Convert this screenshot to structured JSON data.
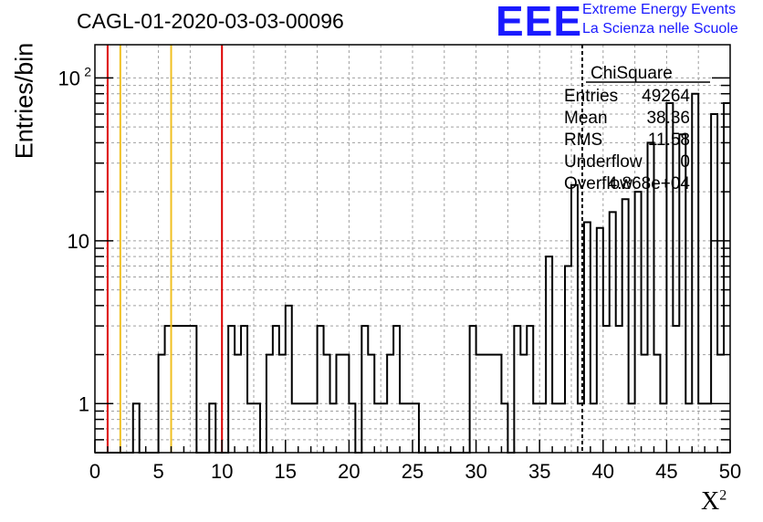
{
  "header": {
    "title": "CAGL-01-2020-03-03-00096",
    "logo_text": "EEE",
    "logo_line1": "Extreme Energy Events",
    "logo_line2": "La Scienza nelle Scuole"
  },
  "chart_data": {
    "type": "bar",
    "style": "step-histogram",
    "title": "CAGL-01-2020-03-03-00096",
    "ylabel": "Entries/bin",
    "xlabel_base": "X",
    "xlabel_sup": "2",
    "xlim": [
      0,
      50
    ],
    "ylim": [
      0.5,
      160
    ],
    "yscale": "log",
    "grid": true,
    "bin_width": 0.5,
    "bin_values": [
      0,
      0,
      0,
      0,
      0,
      0,
      1,
      0,
      0,
      0,
      2,
      3,
      3,
      3,
      3,
      3,
      0,
      0,
      1,
      0,
      0,
      3,
      2,
      3,
      1,
      1,
      0,
      2,
      3,
      2,
      4,
      1,
      1,
      1,
      1,
      3,
      2,
      1,
      2,
      2,
      1,
      0,
      3,
      2,
      1,
      1,
      2,
      3,
      1,
      1,
      1,
      0,
      0,
      0,
      0,
      0,
      0,
      0,
      0,
      3,
      2,
      2,
      2,
      2,
      1,
      0,
      3,
      2,
      3,
      1,
      1,
      8,
      1,
      1,
      7,
      22,
      1,
      13,
      1,
      12,
      3,
      15,
      3,
      18,
      1,
      20,
      2,
      40,
      2,
      1,
      70,
      3,
      45,
      1,
      80,
      1,
      1,
      60,
      2,
      70
    ],
    "ticks_x": [
      "0",
      "5",
      "10",
      "15",
      "20",
      "25",
      "30",
      "35",
      "40",
      "45",
      "50"
    ],
    "ticks_y": [
      {
        "value": 1,
        "label": "1"
      },
      {
        "value": 10,
        "label": "10"
      },
      {
        "value": 100,
        "label": "10",
        "sup": "2"
      }
    ],
    "vlines": [
      {
        "x": 1,
        "color": "#dd0000"
      },
      {
        "x": 2,
        "color": "#f0c020"
      },
      {
        "x": 6,
        "color": "#f0c020"
      },
      {
        "x": 10,
        "color": "#dd0000"
      },
      {
        "x": 38.36,
        "color": "#000000",
        "dashed": true
      }
    ],
    "stats": {
      "name": "ChiSquare",
      "rows": [
        {
          "label": "Entries",
          "value": "49264"
        },
        {
          "label": "Mean",
          "value": "38.36"
        },
        {
          "label": "RMS",
          "value": "11.58"
        },
        {
          "label": "Underflow",
          "value": "0"
        },
        {
          "label": "Overflow",
          "value": "4.868e+04"
        }
      ]
    }
  }
}
